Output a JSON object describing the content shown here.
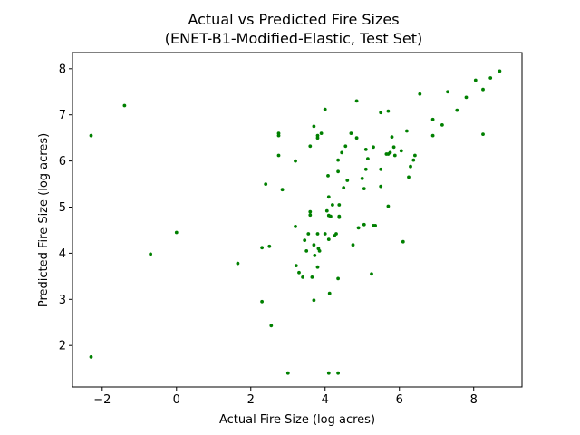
{
  "chart_data": {
    "type": "scatter",
    "title": "Actual vs Predicted Fire Sizes",
    "subtitle": "(ENET-B1-Modified-Elastic, Test Set)",
    "xlabel": "Actual Fire Size (log acres)",
    "ylabel": "Predicted Fire Size (log acres)",
    "xlim": [
      -2.8,
      9.3
    ],
    "ylim": [
      1.1,
      8.35
    ],
    "xticks": [
      -2,
      0,
      2,
      4,
      6,
      8
    ],
    "yticks": [
      2,
      3,
      4,
      5,
      6,
      7,
      8
    ],
    "grid": false,
    "legend": "none",
    "marker_color": "#008000",
    "points": [
      {
        "x": -2.3,
        "y": 6.55
      },
      {
        "x": -2.3,
        "y": 1.75
      },
      {
        "x": -1.4,
        "y": 7.2
      },
      {
        "x": -0.7,
        "y": 3.98
      },
      {
        "x": 0.0,
        "y": 4.45
      },
      {
        "x": 1.65,
        "y": 3.78
      },
      {
        "x": 2.3,
        "y": 4.12
      },
      {
        "x": 2.3,
        "y": 2.95
      },
      {
        "x": 2.4,
        "y": 5.5
      },
      {
        "x": 2.5,
        "y": 4.15
      },
      {
        "x": 2.55,
        "y": 2.43
      },
      {
        "x": 2.75,
        "y": 6.6
      },
      {
        "x": 2.75,
        "y": 6.55
      },
      {
        "x": 2.75,
        "y": 6.12
      },
      {
        "x": 2.85,
        "y": 5.38
      },
      {
        "x": 3.0,
        "y": 1.4
      },
      {
        "x": 3.2,
        "y": 6.0
      },
      {
        "x": 3.2,
        "y": 4.58
      },
      {
        "x": 3.22,
        "y": 3.73
      },
      {
        "x": 3.3,
        "y": 3.58
      },
      {
        "x": 3.4,
        "y": 3.48
      },
      {
        "x": 3.45,
        "y": 4.28
      },
      {
        "x": 3.5,
        "y": 4.05
      },
      {
        "x": 3.55,
        "y": 4.42
      },
      {
        "x": 3.6,
        "y": 6.32
      },
      {
        "x": 3.6,
        "y": 4.9
      },
      {
        "x": 3.6,
        "y": 4.83
      },
      {
        "x": 3.65,
        "y": 3.48
      },
      {
        "x": 3.7,
        "y": 6.75
      },
      {
        "x": 3.7,
        "y": 4.18
      },
      {
        "x": 3.7,
        "y": 2.98
      },
      {
        "x": 3.72,
        "y": 3.95
      },
      {
        "x": 3.8,
        "y": 6.55
      },
      {
        "x": 3.8,
        "y": 6.5
      },
      {
        "x": 3.8,
        "y": 4.42
      },
      {
        "x": 3.8,
        "y": 3.7
      },
      {
        "x": 3.82,
        "y": 4.1
      },
      {
        "x": 3.85,
        "y": 4.05
      },
      {
        "x": 3.9,
        "y": 6.6
      },
      {
        "x": 4.0,
        "y": 7.12
      },
      {
        "x": 4.0,
        "y": 4.42
      },
      {
        "x": 4.05,
        "y": 4.92
      },
      {
        "x": 4.08,
        "y": 5.68
      },
      {
        "x": 4.1,
        "y": 5.22
      },
      {
        "x": 4.1,
        "y": 4.82
      },
      {
        "x": 4.1,
        "y": 4.3
      },
      {
        "x": 4.12,
        "y": 3.13
      },
      {
        "x": 4.1,
        "y": 1.4
      },
      {
        "x": 4.15,
        "y": 4.8
      },
      {
        "x": 4.2,
        "y": 5.05
      },
      {
        "x": 4.25,
        "y": 4.38
      },
      {
        "x": 4.3,
        "y": 4.42
      },
      {
        "x": 4.35,
        "y": 6.02
      },
      {
        "x": 4.35,
        "y": 5.77
      },
      {
        "x": 4.38,
        "y": 5.05
      },
      {
        "x": 4.38,
        "y": 4.8
      },
      {
        "x": 4.38,
        "y": 4.78
      },
      {
        "x": 4.35,
        "y": 3.45
      },
      {
        "x": 4.35,
        "y": 1.4
      },
      {
        "x": 4.45,
        "y": 6.18
      },
      {
        "x": 4.5,
        "y": 5.42
      },
      {
        "x": 4.55,
        "y": 6.32
      },
      {
        "x": 4.6,
        "y": 5.58
      },
      {
        "x": 4.7,
        "y": 6.6
      },
      {
        "x": 4.75,
        "y": 4.18
      },
      {
        "x": 4.85,
        "y": 7.3
      },
      {
        "x": 4.85,
        "y": 6.5
      },
      {
        "x": 4.9,
        "y": 4.55
      },
      {
        "x": 5.0,
        "y": 5.62
      },
      {
        "x": 5.05,
        "y": 5.4
      },
      {
        "x": 5.05,
        "y": 4.62
      },
      {
        "x": 5.1,
        "y": 6.25
      },
      {
        "x": 5.1,
        "y": 5.82
      },
      {
        "x": 5.15,
        "y": 6.05
      },
      {
        "x": 5.25,
        "y": 3.55
      },
      {
        "x": 5.3,
        "y": 6.3
      },
      {
        "x": 5.3,
        "y": 4.6
      },
      {
        "x": 5.35,
        "y": 4.6
      },
      {
        "x": 5.5,
        "y": 7.05
      },
      {
        "x": 5.5,
        "y": 5.82
      },
      {
        "x": 5.5,
        "y": 5.45
      },
      {
        "x": 5.65,
        "y": 6.15
      },
      {
        "x": 5.7,
        "y": 7.08
      },
      {
        "x": 5.7,
        "y": 6.15
      },
      {
        "x": 5.7,
        "y": 5.02
      },
      {
        "x": 5.75,
        "y": 6.18
      },
      {
        "x": 5.8,
        "y": 6.52
      },
      {
        "x": 5.85,
        "y": 6.3
      },
      {
        "x": 5.88,
        "y": 6.12
      },
      {
        "x": 6.05,
        "y": 6.22
      },
      {
        "x": 6.1,
        "y": 4.25
      },
      {
        "x": 6.2,
        "y": 6.65
      },
      {
        "x": 6.25,
        "y": 5.65
      },
      {
        "x": 6.3,
        "y": 5.88
      },
      {
        "x": 6.38,
        "y": 6.02
      },
      {
        "x": 6.42,
        "y": 6.12
      },
      {
        "x": 6.55,
        "y": 7.45
      },
      {
        "x": 6.9,
        "y": 6.9
      },
      {
        "x": 6.9,
        "y": 6.55
      },
      {
        "x": 7.15,
        "y": 6.78
      },
      {
        "x": 7.3,
        "y": 7.5
      },
      {
        "x": 7.55,
        "y": 7.1
      },
      {
        "x": 7.8,
        "y": 7.38
      },
      {
        "x": 8.05,
        "y": 7.75
      },
      {
        "x": 8.25,
        "y": 7.55
      },
      {
        "x": 8.25,
        "y": 6.58
      },
      {
        "x": 8.45,
        "y": 7.8
      },
      {
        "x": 8.7,
        "y": 7.95
      }
    ]
  }
}
